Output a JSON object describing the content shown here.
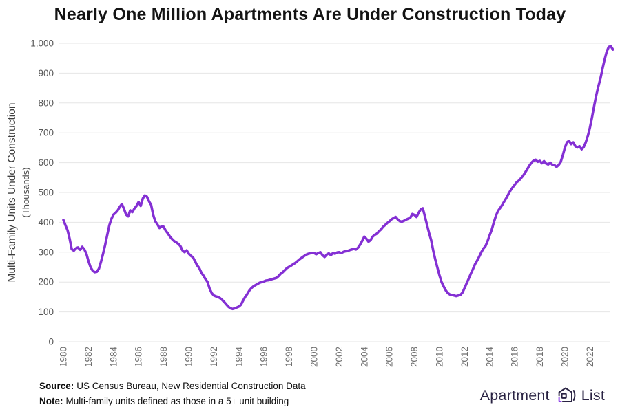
{
  "chart_data": {
    "type": "line",
    "title": "Nearly One Million Apartments Are Under Construction Today",
    "ylabel": "Multi-Family Units Under Construction",
    "ylabel_sub": "(Thousands)",
    "xlabel": "",
    "grid": "horizontal",
    "legend": "none",
    "ylim": [
      0,
      1000
    ],
    "xlim": [
      1980,
      2024
    ],
    "y_ticks": [
      {
        "value": 0,
        "label": "0"
      },
      {
        "value": 100,
        "label": "100"
      },
      {
        "value": 200,
        "label": "200"
      },
      {
        "value": 300,
        "label": "300"
      },
      {
        "value": 400,
        "label": "400"
      },
      {
        "value": 500,
        "label": "500"
      },
      {
        "value": 600,
        "label": "600"
      },
      {
        "value": 700,
        "label": "700"
      },
      {
        "value": 800,
        "label": "800"
      },
      {
        "value": 900,
        "label": "900"
      },
      {
        "value": 1000,
        "label": "1,000"
      }
    ],
    "x_ticks": [
      {
        "value": 1980,
        "label": "1980"
      },
      {
        "value": 1982,
        "label": "1982"
      },
      {
        "value": 1984,
        "label": "1984"
      },
      {
        "value": 1986,
        "label": "1986"
      },
      {
        "value": 1988,
        "label": "1988"
      },
      {
        "value": 1990,
        "label": "1990"
      },
      {
        "value": 1992,
        "label": "1992"
      },
      {
        "value": 1994,
        "label": "1994"
      },
      {
        "value": 1996,
        "label": "1996"
      },
      {
        "value": 1998,
        "label": "1998"
      },
      {
        "value": 2000,
        "label": "2000"
      },
      {
        "value": 2002,
        "label": "2002"
      },
      {
        "value": 2004,
        "label": "2004"
      },
      {
        "value": 2006,
        "label": "2006"
      },
      {
        "value": 2008,
        "label": "2008"
      },
      {
        "value": 2010,
        "label": "2010"
      },
      {
        "value": 2012,
        "label": "2012"
      },
      {
        "value": 2014,
        "label": "2014"
      },
      {
        "value": 2016,
        "label": "2016"
      },
      {
        "value": 2018,
        "label": "2018"
      },
      {
        "value": 2020,
        "label": "2020"
      },
      {
        "value": 2022,
        "label": "2022"
      }
    ],
    "series": [
      {
        "name": "Multi-family units under construction (thousands)",
        "color": "#8430D4",
        "x_start": 1980,
        "x_step_years": 0.1666667,
        "values": [
          408,
          390,
          373,
          345,
          310,
          305,
          313,
          316,
          308,
          318,
          310,
          295,
          270,
          250,
          238,
          233,
          234,
          245,
          268,
          295,
          325,
          358,
          390,
          412,
          426,
          432,
          440,
          452,
          461,
          445,
          426,
          420,
          440,
          434,
          446,
          455,
          468,
          455,
          480,
          490,
          486,
          470,
          458,
          425,
          403,
          393,
          381,
          387,
          385,
          372,
          363,
          352,
          344,
          337,
          333,
          328,
          320,
          306,
          300,
          306,
          295,
          288,
          283,
          270,
          256,
          247,
          232,
          222,
          210,
          200,
          178,
          163,
          155,
          152,
          150,
          146,
          140,
          133,
          125,
          117,
          112,
          110,
          112,
          115,
          118,
          124,
          138,
          150,
          160,
          172,
          180,
          186,
          190,
          194,
          198,
          200,
          202,
          205,
          206,
          208,
          210,
          212,
          214,
          220,
          228,
          233,
          240,
          247,
          251,
          255,
          260,
          264,
          270,
          276,
          281,
          286,
          291,
          294,
          296,
          297,
          297,
          293,
          297,
          300,
          290,
          284,
          292,
          296,
          290,
          297,
          295,
          299,
          300,
          297,
          301,
          303,
          304,
          307,
          309,
          311,
          309,
          315,
          325,
          338,
          352,
          345,
          335,
          340,
          352,
          358,
          362,
          370,
          376,
          385,
          391,
          398,
          403,
          410,
          414,
          418,
          410,
          404,
          402,
          405,
          409,
          412,
          415,
          428,
          425,
          418,
          432,
          443,
          447,
          420,
          392,
          365,
          340,
          305,
          275,
          248,
          222,
          200,
          185,
          172,
          163,
          158,
          157,
          155,
          153,
          155,
          157,
          165,
          180,
          196,
          212,
          228,
          243,
          260,
          272,
          285,
          300,
          312,
          320,
          337,
          357,
          375,
          400,
          422,
          438,
          448,
          458,
          470,
          482,
          495,
          507,
          517,
          526,
          535,
          540,
          548,
          556,
          567,
          578,
          590,
          600,
          607,
          610,
          603,
          606,
          598,
          605,
          597,
          594,
          600,
          593,
          592,
          586,
          592,
          602,
          625,
          650,
          668,
          673,
          662,
          668,
          655,
          651,
          655,
          645,
          652,
          668,
          690,
          718,
          752,
          790,
          825,
          855,
          882,
          915,
          945,
          972,
          988,
          990,
          979
        ]
      }
    ]
  },
  "footer": {
    "source_label": "Source:",
    "source_text": "US Census Bureau, New Residential Construction Data",
    "note_label": "Note:",
    "note_text": "Multi-family units defined as those in a 5+ unit building"
  },
  "logo": {
    "word_left": "Apartment",
    "word_right": "List"
  },
  "colors": {
    "line": "#8430D4",
    "grid": "#e6e6e6",
    "logo_dark": "#2a2343",
    "logo_accent": "#8B3DE8"
  }
}
